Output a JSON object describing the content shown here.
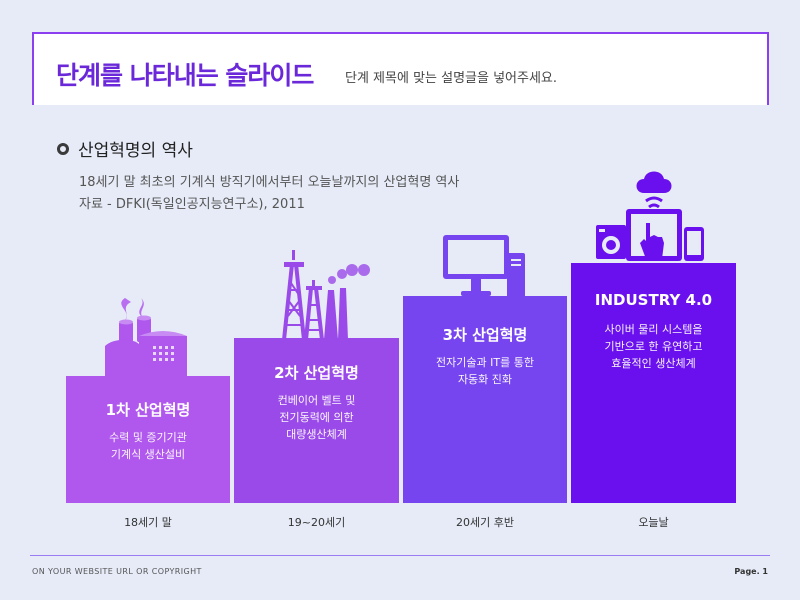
{
  "header": {
    "title": "단계를 나타내는 슬라이드",
    "subtitle": "단계 제목에 맞는 설명글을 넣어주세요."
  },
  "section": {
    "title": "산업혁명의 역사",
    "desc1": "18세기 말 최초의 기계식 방직기에서부터 오늘날까지의 산업혁명 역사",
    "desc2": "자료 - DFKI(독일인공지능연구소), 2011"
  },
  "steps": [
    {
      "title": "1차 산업혁명",
      "desc": "수력 및 증기기관\n기계식 생산설비",
      "era": "18세기 말",
      "color": "#b057ee",
      "icon": "factory-icon"
    },
    {
      "title": "2차 산업혁명",
      "desc": "컨베이어 벨트 및\n전기동력에 의한\n대량생산체계",
      "era": "19~20세기",
      "color": "#9a4ae8",
      "icon": "oil-refinery-icon"
    },
    {
      "title": "3차 산업혁명",
      "desc": "전자기술과 IT를 통한\n자동화 진화",
      "era": "20세기 후반",
      "color": "#7645ef",
      "icon": "computer-icon"
    },
    {
      "title": "INDUSTRY 4.0",
      "desc": "사이버 물리 시스템을\n기반으로 한 유연하고\n효율적인 생산체계",
      "era": "오늘날",
      "color": "#6a10ee",
      "icon": "cloud-devices-icon"
    }
  ],
  "footer": {
    "left": "ON YOUR WEBSITE URL OR COPYRIGHT",
    "right": "Page. 1"
  },
  "colors": {
    "background": "#e6ebf7",
    "accent": "#8b3ff0"
  }
}
